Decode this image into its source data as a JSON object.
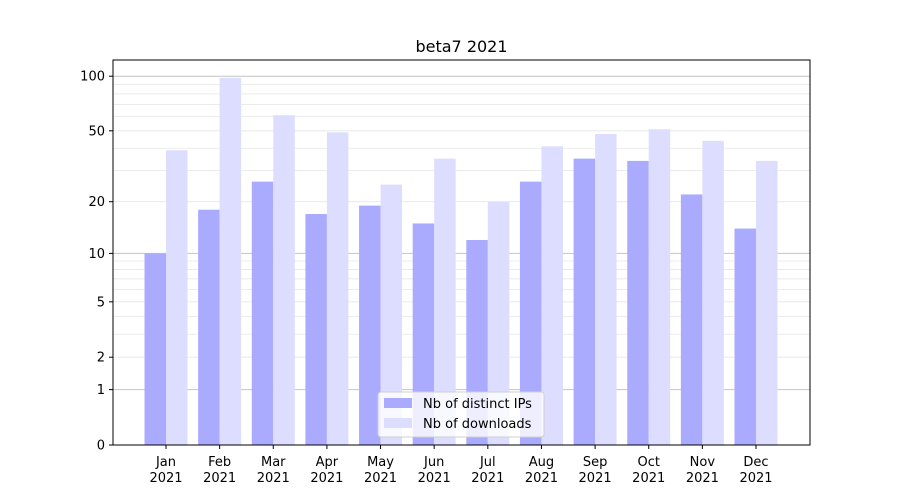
{
  "chart_data": {
    "type": "bar",
    "title": "beta7 2021",
    "xlabel": "",
    "ylabel": "",
    "yscale": "symlog (log10(1+y))",
    "ylim": [
      0,
      115
    ],
    "yticks": [
      0,
      1,
      2,
      5,
      10,
      20,
      50,
      100
    ],
    "ytick_labels": [
      "0",
      "1",
      "2",
      "5",
      "10",
      "20",
      "50",
      "100"
    ],
    "grid": true,
    "categories": [
      "Jan\n2021",
      "Feb\n2021",
      "Mar\n2021",
      "Apr\n2021",
      "May\n2021",
      "Jun\n2021",
      "Jul\n2021",
      "Aug\n2021",
      "Sep\n2021",
      "Oct\n2021",
      "Nov\n2021",
      "Dec\n2021"
    ],
    "category_lines": [
      [
        "Jan",
        "2021"
      ],
      [
        "Feb",
        "2021"
      ],
      [
        "Mar",
        "2021"
      ],
      [
        "Apr",
        "2021"
      ],
      [
        "May",
        "2021"
      ],
      [
        "Jun",
        "2021"
      ],
      [
        "Jul",
        "2021"
      ],
      [
        "Aug",
        "2021"
      ],
      [
        "Sep",
        "2021"
      ],
      [
        "Oct",
        "2021"
      ],
      [
        "Nov",
        "2021"
      ],
      [
        "Dec",
        "2021"
      ]
    ],
    "series": [
      {
        "name": "Nb of distinct IPs",
        "color": "#aaaaff",
        "values": [
          10,
          18,
          26,
          17,
          19,
          15,
          12,
          26,
          35,
          34,
          22,
          14
        ]
      },
      {
        "name": "Nb of downloads",
        "color": "#ddddff",
        "values": [
          39,
          98,
          61,
          49,
          25,
          35,
          20,
          41,
          48,
          51,
          44,
          34
        ]
      }
    ],
    "legend": {
      "position": "lower-center"
    }
  }
}
